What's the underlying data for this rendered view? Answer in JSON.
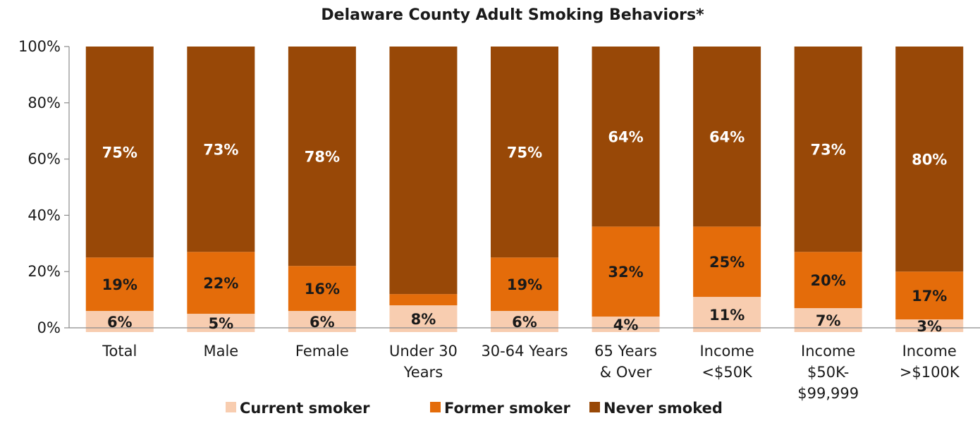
{
  "chart_data": {
    "type": "bar",
    "stacked": true,
    "title": "Delaware County Adult Smoking Behaviors*",
    "xlabel": "",
    "ylabel": "",
    "ylim": [
      0,
      100
    ],
    "yticks": [
      "0%",
      "20%",
      "40%",
      "60%",
      "80%",
      "100%"
    ],
    "grid": false,
    "legend_position": "bottom",
    "categories": [
      [
        "Total"
      ],
      [
        "Male"
      ],
      [
        "Female"
      ],
      [
        "Under 30",
        "Years"
      ],
      [
        "30-64 Years"
      ],
      [
        "65 Years",
        "& Over"
      ],
      [
        "Income",
        "<$50K"
      ],
      [
        "Income",
        "$50K-",
        "$99,999"
      ],
      [
        "Income",
        ">$100K"
      ]
    ],
    "series": [
      {
        "name": "Current smoker",
        "color": "#F8CDB0",
        "values": [
          6,
          5,
          6,
          8,
          6,
          4,
          11,
          7,
          3
        ],
        "labels": [
          "6%",
          "5%",
          "6%",
          "8%",
          "6%",
          "4%",
          "11%",
          "7%",
          "3%"
        ]
      },
      {
        "name": "Former smoker",
        "color": "#E46C0A",
        "values": [
          19,
          22,
          16,
          4,
          19,
          32,
          25,
          20,
          17
        ],
        "labels": [
          "19%",
          "22%",
          "16%",
          "",
          "19%",
          "32%",
          "25%",
          "20%",
          "17%"
        ]
      },
      {
        "name": "Never smoked",
        "color": "#984807",
        "values": [
          75,
          73,
          78,
          88,
          75,
          64,
          64,
          73,
          80
        ],
        "labels": [
          "75%",
          "73%",
          "78%",
          "",
          "75%",
          "64%",
          "64%",
          "73%",
          "80%"
        ]
      }
    ]
  }
}
